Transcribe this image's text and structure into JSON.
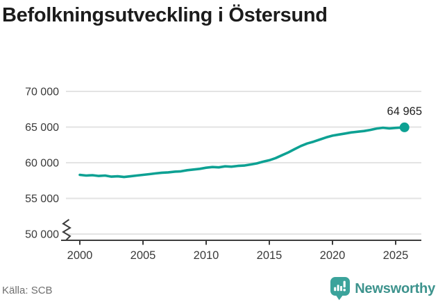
{
  "title": "Befolkningsutveckling i Östersund",
  "footer": {
    "source": "Källa: SCB",
    "brand": "Newsworthy"
  },
  "colors": {
    "line": "#0da193",
    "grid": "#e3e3e3",
    "axis": "#3c3c3c",
    "tick_text": "#3a3a3a",
    "annotation_text": "#1f1f1f",
    "title_text": "#1c1c1c",
    "source_text": "#6f6f6f",
    "brand_icon": "#3ba39b",
    "brand_text": "#3d938d",
    "background": "#ffffff"
  },
  "chart_data": {
    "type": "line",
    "title": "Befolkningsutveckling i Östersund",
    "xlabel": "",
    "ylabel": "",
    "xlim": [
      1999.6,
      2026.6
    ],
    "ylim": [
      50000,
      70000
    ],
    "axis_break_at_bottom": true,
    "grid": "horizontal",
    "legend": "none",
    "x_ticks": [
      2000,
      2005,
      2010,
      2015,
      2020,
      2025
    ],
    "x_tick_labels": [
      "2000",
      "2005",
      "2010",
      "2015",
      "2020",
      "2025"
    ],
    "y_ticks": [
      70000,
      65000,
      60000,
      55000,
      50000
    ],
    "y_tick_labels": [
      "70 000",
      "65 000",
      "60 000",
      "55 000",
      "50 000"
    ],
    "last_point_label": "64 965",
    "series": [
      {
        "name": "Befolkning",
        "points": [
          [
            2000.0,
            58300
          ],
          [
            2000.5,
            58200
          ],
          [
            2001.0,
            58250
          ],
          [
            2001.5,
            58150
          ],
          [
            2002.0,
            58200
          ],
          [
            2002.5,
            58050
          ],
          [
            2003.0,
            58100
          ],
          [
            2003.5,
            58000
          ],
          [
            2004.0,
            58100
          ],
          [
            2004.5,
            58200
          ],
          [
            2005.0,
            58300
          ],
          [
            2005.5,
            58400
          ],
          [
            2006.0,
            58500
          ],
          [
            2006.5,
            58600
          ],
          [
            2007.0,
            58650
          ],
          [
            2007.5,
            58750
          ],
          [
            2008.0,
            58800
          ],
          [
            2008.5,
            58950
          ],
          [
            2009.0,
            59050
          ],
          [
            2009.5,
            59150
          ],
          [
            2010.0,
            59300
          ],
          [
            2010.5,
            59400
          ],
          [
            2011.0,
            59350
          ],
          [
            2011.5,
            59500
          ],
          [
            2012.0,
            59450
          ],
          [
            2012.5,
            59550
          ],
          [
            2013.0,
            59600
          ],
          [
            2013.5,
            59750
          ],
          [
            2014.0,
            59900
          ],
          [
            2014.5,
            60150
          ],
          [
            2015.0,
            60350
          ],
          [
            2015.5,
            60650
          ],
          [
            2016.0,
            61050
          ],
          [
            2016.5,
            61450
          ],
          [
            2017.0,
            61900
          ],
          [
            2017.5,
            62350
          ],
          [
            2018.0,
            62700
          ],
          [
            2018.5,
            62950
          ],
          [
            2019.0,
            63250
          ],
          [
            2019.5,
            63550
          ],
          [
            2020.0,
            63800
          ],
          [
            2020.5,
            63950
          ],
          [
            2021.0,
            64100
          ],
          [
            2021.5,
            64250
          ],
          [
            2022.0,
            64350
          ],
          [
            2022.5,
            64450
          ],
          [
            2023.0,
            64600
          ],
          [
            2023.5,
            64800
          ],
          [
            2024.0,
            64900
          ],
          [
            2024.5,
            64820
          ],
          [
            2025.0,
            64880
          ],
          [
            2025.7,
            64965
          ]
        ]
      }
    ]
  }
}
